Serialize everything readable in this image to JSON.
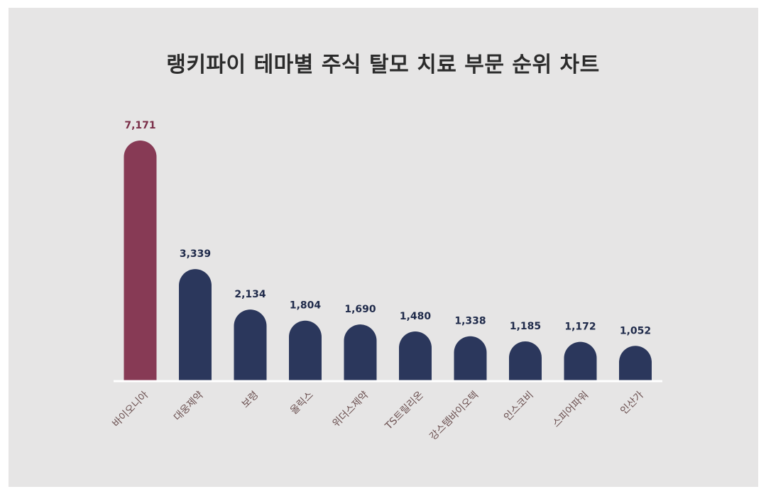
{
  "chart_data": {
    "type": "bar",
    "title": "랭키파이 테마별 주식 탈모 치료 부문 순위 차트",
    "categories": [
      "바이오니아",
      "대웅제약",
      "보령",
      "올릭스",
      "위더스제약",
      "TS트릴리온",
      "강스템바이오텍",
      "인스코비",
      "스피어파워",
      "인산가"
    ],
    "values": [
      7171,
      3339,
      2134,
      1804,
      1690,
      1480,
      1338,
      1185,
      1172,
      1052
    ],
    "value_labels": [
      "7,171",
      "3,339",
      "2,134",
      "1,804",
      "1,690",
      "1,480",
      "1,338",
      "1,185",
      "1,172",
      "1,052"
    ],
    "highlight_index": 0,
    "ylim": [
      0,
      7171
    ],
    "grid": false,
    "legend": "none"
  },
  "colors": {
    "highlight": "#873a55",
    "bar": "#2b375c",
    "highlight_label": "#7a2e48",
    "bar_label": "#1f2a4a",
    "category_label": "#6b5050",
    "baseline": "#ffffff",
    "background": "#e6e5e5"
  }
}
